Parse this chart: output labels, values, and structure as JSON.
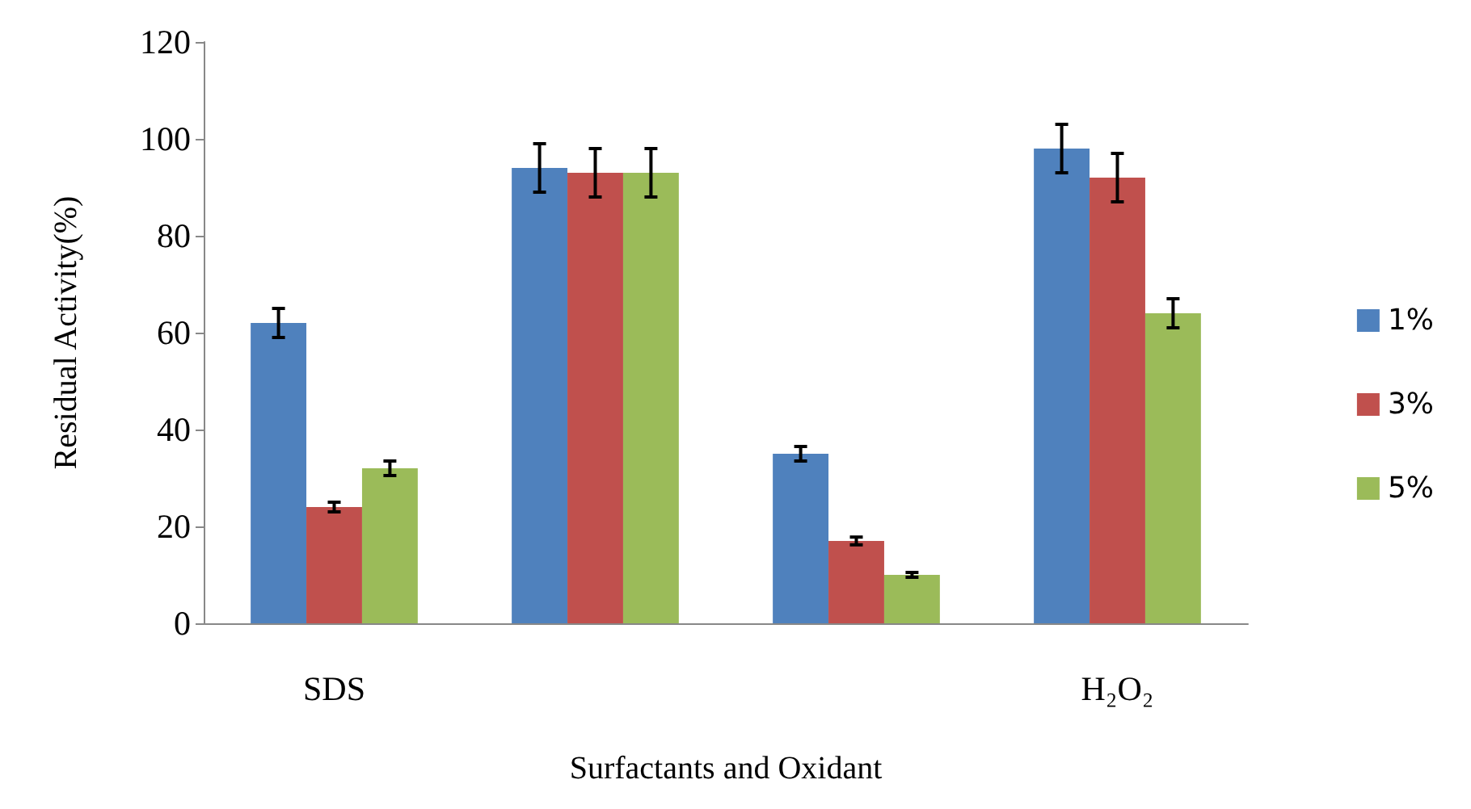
{
  "chart_data": {
    "type": "bar",
    "xlabel": "Surfactants and Oxidant",
    "ylabel": "Residual Activity(%)",
    "categories": [
      "SDS",
      null,
      null,
      "H₂O₂"
    ],
    "series": [
      {
        "name": "1%",
        "color": "#4f81bd",
        "values": [
          62,
          94,
          35,
          98
        ],
        "errors": [
          3,
          5,
          1.5,
          5
        ]
      },
      {
        "name": "3%",
        "color": "#c0504d",
        "values": [
          24,
          93,
          17,
          92
        ],
        "errors": [
          1,
          5,
          0.8,
          5
        ]
      },
      {
        "name": "5%",
        "color": "#9bbb59",
        "values": [
          32,
          93,
          10,
          64
        ],
        "errors": [
          1.5,
          5,
          0.5,
          3
        ]
      }
    ],
    "ylim": [
      0,
      120
    ],
    "yticks": [
      0,
      20,
      40,
      60,
      80,
      100,
      120
    ],
    "grid": false,
    "legend": "right"
  }
}
